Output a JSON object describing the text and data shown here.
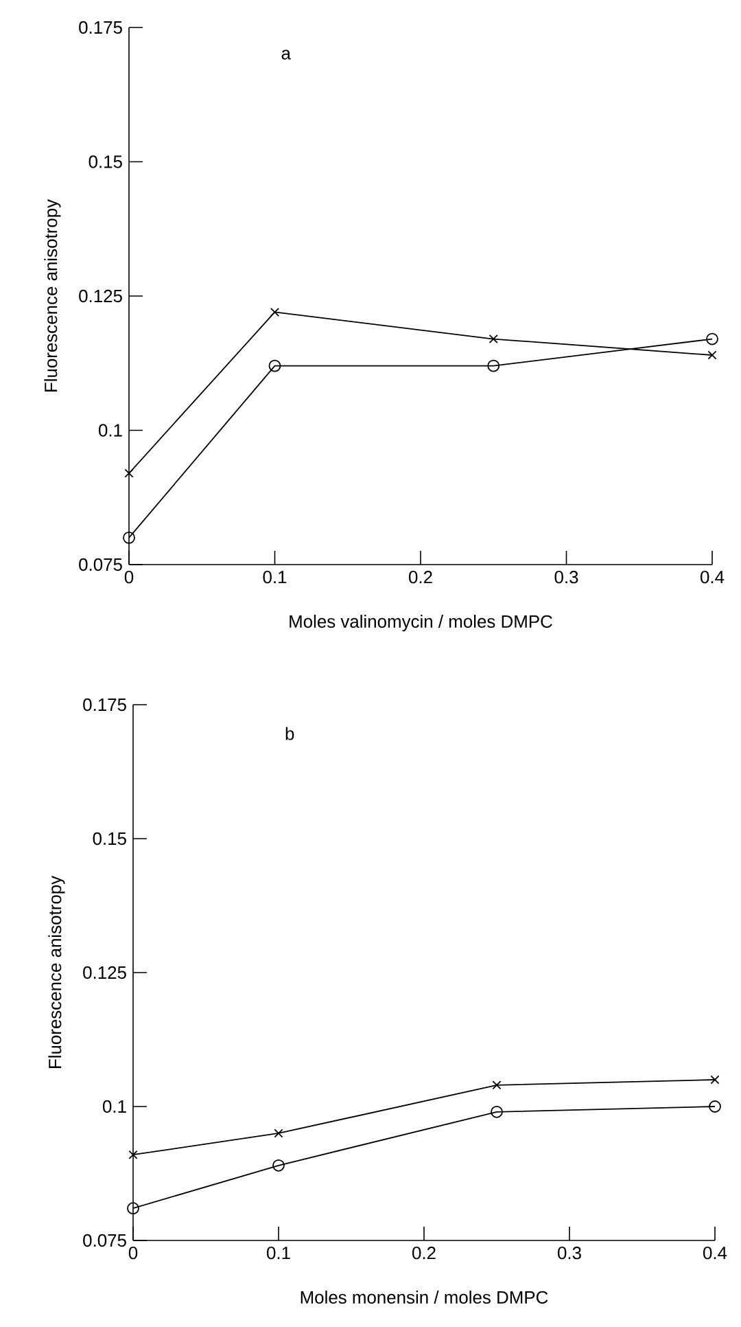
{
  "chart_data": [
    {
      "type": "line",
      "annotations": [
        "a"
      ],
      "xlabel": "Moles valinomycin / moles DMPC",
      "ylabel": "Fluorescence anisotropy",
      "x": [
        0,
        0.1,
        0.25,
        0.4
      ],
      "xlim": [
        0,
        0.4
      ],
      "xticks": [
        0,
        0.1,
        0.2,
        0.3,
        0.4
      ],
      "ylim": [
        0.075,
        0.175
      ],
      "yticks": [
        0.075,
        0.1,
        0.125,
        0.15,
        0.175
      ],
      "line_style": "solid",
      "series": [
        {
          "color": "#000000",
          "marker": "cross",
          "values": [
            0.092,
            0.122,
            0.117,
            0.114
          ]
        },
        {
          "color": "#000000",
          "marker": "circle",
          "values": [
            0.08,
            0.112,
            0.112,
            0.117
          ]
        }
      ]
    },
    {
      "type": "line",
      "annotations": [
        "b"
      ],
      "xlabel": "Moles monensin / moles DMPC",
      "ylabel": "Fluorescence anisotropy",
      "x": [
        0,
        0.1,
        0.25,
        0.4
      ],
      "xlim": [
        0,
        0.4
      ],
      "xticks": [
        0,
        0.1,
        0.2,
        0.3,
        0.4
      ],
      "ylim": [
        0.075,
        0.175
      ],
      "yticks": [
        0.075,
        0.1,
        0.125,
        0.15,
        0.175
      ],
      "line_style": "solid",
      "series": [
        {
          "color": "#000000",
          "marker": "cross",
          "values": [
            0.091,
            0.095,
            0.104,
            0.105
          ]
        },
        {
          "color": "#000000",
          "marker": "circle",
          "values": [
            0.081,
            0.089,
            0.099,
            0.1
          ]
        }
      ]
    }
  ]
}
